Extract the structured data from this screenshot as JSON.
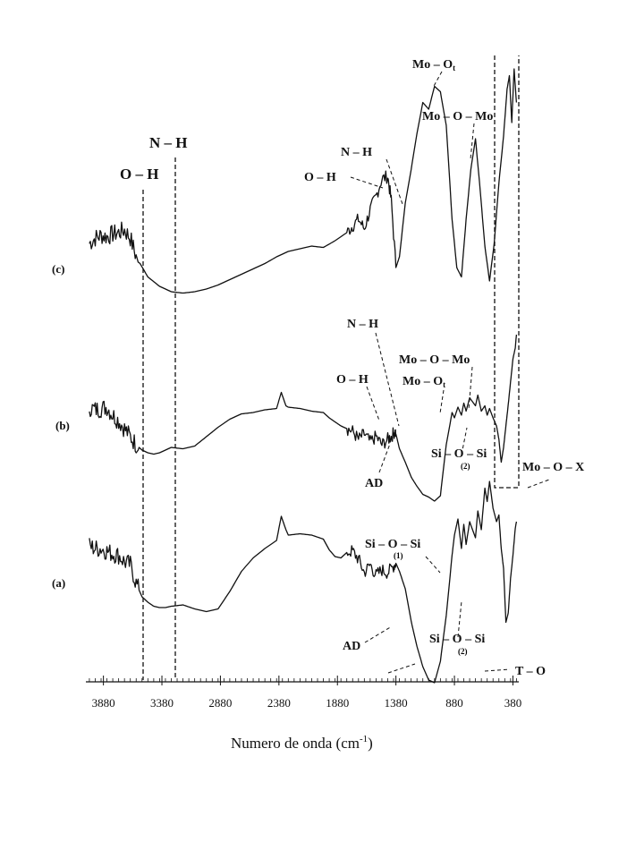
{
  "chart_data": {
    "type": "line",
    "title": "",
    "xlabel_main": "Numero de onda (cm",
    "xlabel_sup": "-1",
    "xlabel_end": ")",
    "ylabel": "",
    "xlim": [
      4030,
      330
    ],
    "x_reversed": true,
    "xticks": [
      3880,
      3380,
      2880,
      2380,
      1880,
      1380,
      880,
      380
    ],
    "grid": false,
    "series": [
      {
        "name": "(c)",
        "x": [
          4000,
          3950,
          3900,
          3850,
          3800,
          3750,
          3700,
          3650,
          3600,
          3500,
          3400,
          3300,
          3200,
          3100,
          3000,
          2900,
          2800,
          2700,
          2600,
          2500,
          2400,
          2300,
          2200,
          2100,
          2000,
          1900,
          1800,
          1750,
          1700,
          1650,
          1600,
          1550,
          1500,
          1450,
          1420,
          1380,
          1350,
          1300,
          1250,
          1200,
          1150,
          1100,
          1050,
          1000,
          950,
          900,
          860,
          820,
          780,
          740,
          700,
          660,
          620,
          580,
          540,
          500,
          460,
          430,
          410,
          390,
          370,
          350
        ],
        "y": [
          0.8,
          0.84,
          0.86,
          0.85,
          0.87,
          0.88,
          0.9,
          0.84,
          0.7,
          0.55,
          0.48,
          0.44,
          0.43,
          0.44,
          0.46,
          0.49,
          0.53,
          0.57,
          0.61,
          0.65,
          0.7,
          0.74,
          0.76,
          0.78,
          0.77,
          0.82,
          0.88,
          0.93,
          0.98,
          0.91,
          1.05,
          1.15,
          1.28,
          1.3,
          1.12,
          0.62,
          0.7,
          1.1,
          1.35,
          1.62,
          1.85,
          1.8,
          1.97,
          1.93,
          1.68,
          0.98,
          0.62,
          0.55,
          0.98,
          1.35,
          1.58,
          1.2,
          0.78,
          0.52,
          0.8,
          1.25,
          1.6,
          1.95,
          2.05,
          1.7,
          2.1,
          1.85
        ]
      },
      {
        "name": "(b)",
        "x": [
          4000,
          3950,
          3900,
          3850,
          3800,
          3750,
          3700,
          3650,
          3600,
          3550,
          3500,
          3450,
          3400,
          3300,
          3200,
          3100,
          3000,
          2900,
          2800,
          2700,
          2600,
          2500,
          2400,
          2360,
          2320,
          2300,
          2200,
          2100,
          2000,
          1950,
          1900,
          1850,
          1800,
          1750,
          1700,
          1650,
          1600,
          1550,
          1500,
          1450,
          1420,
          1390,
          1380,
          1350,
          1300,
          1250,
          1200,
          1150,
          1100,
          1050,
          1000,
          950,
          900,
          880,
          850,
          820,
          800,
          780,
          750,
          700,
          680,
          650,
          620,
          600,
          580,
          550,
          520,
          500,
          480,
          460,
          440,
          420,
          400,
          380,
          360,
          350
        ],
        "y": [
          0.86,
          0.84,
          0.85,
          0.86,
          0.8,
          0.76,
          0.7,
          0.64,
          0.58,
          0.54,
          0.52,
          0.51,
          0.52,
          0.56,
          0.55,
          0.57,
          0.64,
          0.71,
          0.77,
          0.81,
          0.82,
          0.84,
          0.85,
          0.97,
          0.87,
          0.86,
          0.85,
          0.83,
          0.82,
          0.78,
          0.75,
          0.72,
          0.7,
          0.68,
          0.62,
          0.66,
          0.6,
          0.64,
          0.58,
          0.62,
          0.64,
          0.68,
          0.66,
          0.55,
          0.45,
          0.34,
          0.27,
          0.21,
          0.19,
          0.16,
          0.2,
          0.58,
          0.82,
          0.78,
          0.86,
          0.8,
          0.89,
          0.83,
          0.93,
          0.87,
          0.95,
          0.83,
          0.87,
          0.8,
          0.85,
          0.78,
          0.72,
          0.62,
          0.45,
          0.56,
          0.72,
          0.88,
          1.05,
          1.22,
          1.3,
          1.4
        ]
      },
      {
        "name": "(a)",
        "x": [
          4000,
          3950,
          3900,
          3850,
          3800,
          3750,
          3700,
          3650,
          3600,
          3550,
          3500,
          3450,
          3400,
          3350,
          3300,
          3200,
          3100,
          3000,
          2900,
          2800,
          2700,
          2600,
          2500,
          2400,
          2360,
          2320,
          2300,
          2200,
          2100,
          2000,
          1950,
          1900,
          1850,
          1800,
          1750,
          1700,
          1650,
          1600,
          1550,
          1500,
          1450,
          1400,
          1380,
          1350,
          1300,
          1250,
          1200,
          1150,
          1100,
          1050,
          1000,
          950,
          900,
          880,
          850,
          820,
          800,
          780,
          750,
          700,
          680,
          650,
          620,
          600,
          580,
          550,
          520,
          500,
          480,
          460,
          440,
          420,
          400,
          380,
          360,
          350
        ],
        "y": [
          1.12,
          1.1,
          1.1,
          1.08,
          1.06,
          1.05,
          1.0,
          0.98,
          0.84,
          0.74,
          0.7,
          0.67,
          0.66,
          0.66,
          0.67,
          0.68,
          0.65,
          0.63,
          0.65,
          0.78,
          0.93,
          1.03,
          1.1,
          1.16,
          1.34,
          1.24,
          1.2,
          1.21,
          1.2,
          1.17,
          1.09,
          1.04,
          1.03,
          1.07,
          1.08,
          1.02,
          0.92,
          0.98,
          0.9,
          0.94,
          0.92,
          0.97,
          0.99,
          0.93,
          0.8,
          0.56,
          0.37,
          0.22,
          0.12,
          0.1,
          0.26,
          0.6,
          1.05,
          1.2,
          1.32,
          1.1,
          1.28,
          1.13,
          1.3,
          1.18,
          1.38,
          1.24,
          1.55,
          1.45,
          1.6,
          1.4,
          1.3,
          1.35,
          1.1,
          0.95,
          0.55,
          0.62,
          0.88,
          1.05,
          1.25,
          1.3
        ]
      }
    ],
    "annotations": {
      "oh_main": "O – H",
      "nh_main": "N – H",
      "c_nh": "N – H",
      "c_oh": "O – H",
      "c_moot": "Mo – O",
      "c_moot_sub": "t",
      "c_momo": "Mo – O – Mo",
      "b_nh": "N – H",
      "b_oh": "O – H",
      "b_momo": "Mo – O – Mo",
      "b_moot": "Mo – O",
      "b_moot_sub": "t",
      "b_sisi": "Si – O – Si",
      "b_sisi_num": "(2)",
      "b_ad": "AD",
      "b_mox": "Mo – O – X",
      "a_sisi": "Si – O – Si",
      "a_sisi_num": "(1)",
      "a_sisi2": "Si – O – Si",
      "a_sisi2_num": "(2)",
      "a_ad": "AD",
      "a_to": "T – O"
    }
  }
}
